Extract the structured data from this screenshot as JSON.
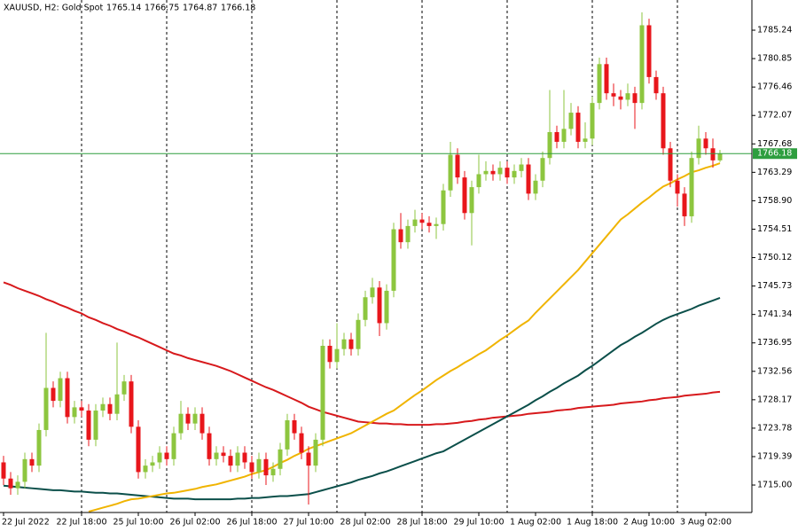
{
  "chart_data": {
    "type": "candlestick",
    "title": "XAUUSD, H2:  Gold Spot",
    "categories": [
      "22 Jul 2022",
      null,
      null,
      null,
      null,
      null,
      null,
      null,
      null,
      null,
      null,
      "22 Jul 18:00",
      null,
      null,
      null,
      null,
      null,
      null,
      null,
      "25 Jul 10:00",
      null,
      null,
      null,
      null,
      null,
      null,
      null,
      "26 Jul 02:00",
      null,
      null,
      null,
      null,
      null,
      null,
      null,
      "26 Jul 18:00",
      null,
      null,
      null,
      null,
      null,
      null,
      null,
      "27 Jul 10:00",
      null,
      null,
      null,
      null,
      null,
      null,
      null,
      "28 Jul 02:00",
      null,
      null,
      null,
      null,
      null,
      null,
      null,
      "28 Jul 18:00",
      null,
      null,
      null,
      null,
      null,
      null,
      null,
      "29 Jul 10:00",
      null,
      null,
      null,
      null,
      null,
      null,
      null,
      "1 Aug 02:00",
      null,
      null,
      null,
      null,
      null,
      null,
      null,
      "1 Aug 18:00",
      null,
      null,
      null,
      null,
      null,
      null,
      null,
      "2 Aug 10:00",
      null,
      null,
      null,
      null,
      null,
      null,
      null,
      "3 Aug 02:00",
      null,
      null
    ],
    "open": [
      1718.5,
      1716.0,
      1714.5,
      1715.5,
      1719.0,
      1718.0,
      1723.5,
      1730.0,
      1728.0,
      1731.5,
      1725.5,
      1727.0,
      1726.5,
      1722.0,
      1726.5,
      1727.5,
      1726.0,
      1729.0,
      1731.0,
      1724.0,
      1717.0,
      1718.0,
      1718.5,
      1720.0,
      1719.0,
      1723.0,
      1726.0,
      1724.5,
      1726.0,
      1723.0,
      1719.0,
      1720.0,
      1719.5,
      1718.0,
      1720.0,
      1718.5,
      1717.0,
      1719.0,
      1716.5,
      1717.5,
      1720.5,
      1725.0,
      1723.0,
      1720.0,
      1718.0,
      1722.0,
      1736.5,
      1734.0,
      1736.0,
      1737.5,
      1736.0,
      1740.5,
      1744.0,
      1745.5,
      1740.0,
      1745.0,
      1754.5,
      1752.5,
      1755.0,
      1756.0,
      1755.5,
      1755.0,
      1755.3,
      1760.5,
      1766.0,
      1762.5,
      1757.0,
      1761.0,
      1763.0,
      1763.5,
      1763.0,
      1764.0,
      1762.5,
      1763.5,
      1764.5,
      1760.0,
      1762.0,
      1765.5,
      1769.5,
      1768.0,
      1770.0,
      1772.5,
      1768.0,
      1768.5,
      1774.0,
      1780.0,
      1775.5,
      1775.0,
      1774.5,
      1775.5,
      1774.0,
      1786.0,
      1778.0,
      1775.5,
      1767.0,
      1762.0,
      1760.0,
      1756.5,
      1765.5,
      1768.5,
      1767.0,
      1765.14
    ],
    "high": [
      1719.5,
      1717,
      1716.5,
      1720,
      1720,
      1724.5,
      1738.5,
      1731,
      1732.5,
      1732.5,
      1728,
      1728,
      1727.5,
      1727.5,
      1728.5,
      1728.5,
      1737,
      1732,
      1732,
      1725,
      1719,
      1719.5,
      1721,
      1721,
      1724,
      1728,
      1727,
      1727,
      1727,
      1724,
      1721,
      1721,
      1720.5,
      1721,
      1721,
      1719.5,
      1720,
      1720,
      1718.5,
      1721.5,
      1726,
      1726,
      1724,
      1721,
      1723,
      1737.5,
      1737.5,
      1740,
      1738.5,
      1738.5,
      1741.5,
      1745,
      1747,
      1746.5,
      1746,
      1755.5,
      1757,
      1756,
      1757.5,
      1757,
      1756.5,
      1756.3,
      1761.5,
      1768,
      1767,
      1763.5,
      1762,
      1766,
      1765,
      1764.5,
      1765,
      1765,
      1764.5,
      1765.5,
      1765.5,
      1763,
      1766.5,
      1776,
      1770.5,
      1776,
      1774,
      1773.5,
      1771,
      1775,
      1781,
      1781,
      1777,
      1776,
      1777,
      1776.5,
      1788,
      1787,
      1779,
      1776.5,
      1768,
      1763,
      1761,
      1766.5,
      1770.5,
      1769.5,
      1768.5,
      1766.75
    ],
    "low": [
      1715,
      1713.5,
      1713.5,
      1714.5,
      1717,
      1717,
      1722.5,
      1727,
      1727,
      1724.5,
      1724.5,
      1725.5,
      1721,
      1721,
      1725.5,
      1725,
      1725,
      1728,
      1723,
      1716,
      1716,
      1717,
      1717.5,
      1718,
      1718,
      1722,
      1723.5,
      1723.5,
      1722,
      1718,
      1718,
      1718.5,
      1717,
      1717,
      1717.5,
      1716,
      1716,
      1715,
      1715.5,
      1716.5,
      1719.5,
      1722,
      1719,
      1712,
      1717,
      1721,
      1733,
      1733,
      1735,
      1735,
      1735,
      1739.5,
      1743,
      1738,
      1739,
      1744,
      1751.5,
      1751.5,
      1754,
      1754.5,
      1754,
      1753,
      1754.3,
      1759.5,
      1761.5,
      1756,
      1752,
      1760,
      1762,
      1762,
      1762,
      1761.5,
      1761.5,
      1762.5,
      1759,
      1759,
      1761,
      1764.5,
      1767,
      1767,
      1769,
      1767,
      1767,
      1767.5,
      1773,
      1774.5,
      1773.5,
      1773,
      1773.5,
      1770,
      1773,
      1777,
      1774.5,
      1766,
      1761,
      1758,
      1755,
      1755.5,
      1764.5,
      1766,
      1764,
      1764.87
    ],
    "close": [
      1716.0,
      1714.5,
      1715.5,
      1719.0,
      1718.0,
      1723.5,
      1730.0,
      1728.0,
      1731.5,
      1725.5,
      1727.0,
      1726.5,
      1722.0,
      1726.5,
      1727.5,
      1726.0,
      1729.0,
      1731.0,
      1724.0,
      1717.0,
      1718.0,
      1718.5,
      1720.0,
      1719.0,
      1723.0,
      1726.0,
      1724.5,
      1726.0,
      1723.0,
      1719.0,
      1720.0,
      1719.5,
      1718.0,
      1720.0,
      1718.5,
      1717.0,
      1719.0,
      1716.5,
      1717.5,
      1720.5,
      1725.0,
      1723.0,
      1720.0,
      1718.0,
      1722.0,
      1736.5,
      1734.0,
      1736.0,
      1737.5,
      1736.0,
      1740.5,
      1744.0,
      1745.5,
      1740.0,
      1745.0,
      1754.5,
      1752.5,
      1755.0,
      1756.0,
      1755.5,
      1755.0,
      1755.3,
      1760.5,
      1766.0,
      1762.5,
      1757.0,
      1761.0,
      1763.0,
      1763.5,
      1763.0,
      1764.0,
      1762.5,
      1763.5,
      1764.5,
      1760.0,
      1762.0,
      1765.5,
      1769.5,
      1768.0,
      1770.0,
      1772.5,
      1768.0,
      1768.5,
      1774.0,
      1780.0,
      1775.5,
      1775.0,
      1774.5,
      1775.5,
      1774.0,
      1786.0,
      1778.0,
      1775.5,
      1767.0,
      1762.0,
      1760.0,
      1756.5,
      1765.5,
      1768.5,
      1767.0,
      1765.14,
      1766.18
    ],
    "up_color": "#8dc63f",
    "down_color": "#e8161b",
    "price_line_color": "#2e9e3f",
    "overlays": [
      {
        "color": "#d7191c",
        "values": [
          1746.3,
          1745.9,
          1745.4,
          1745.0,
          1744.6,
          1744.2,
          1743.7,
          1743.3,
          1742.8,
          1742.4,
          1741.9,
          1741.5,
          1740.9,
          1740.5,
          1740.0,
          1739.6,
          1739.1,
          1738.7,
          1738.2,
          1737.8,
          1737.3,
          1736.8,
          1736.3,
          1735.8,
          1735.3,
          1735.0,
          1734.6,
          1734.3,
          1734.0,
          1733.7,
          1733.4,
          1733.0,
          1732.6,
          1732.1,
          1731.6,
          1731.1,
          1730.6,
          1730.1,
          1729.7,
          1729.2,
          1728.7,
          1728.2,
          1727.7,
          1727.1,
          1726.7,
          1726.3,
          1726.0,
          1725.7,
          1725.4,
          1725.1,
          1724.8,
          1724.7,
          1724.6,
          1724.5,
          1724.5,
          1724.4,
          1724.4,
          1724.3,
          1724.3,
          1724.3,
          1724.3,
          1724.4,
          1724.4,
          1724.5,
          1724.6,
          1724.8,
          1724.9,
          1725.1,
          1725.2,
          1725.4,
          1725.5,
          1725.6,
          1725.7,
          1725.8,
          1726.0,
          1726.1,
          1726.2,
          1726.3,
          1726.5,
          1726.6,
          1726.7,
          1726.9,
          1727.0,
          1727.1,
          1727.2,
          1727.3,
          1727.4,
          1727.6,
          1727.7,
          1727.8,
          1727.9,
          1728.1,
          1728.2,
          1728.4,
          1728.5,
          1728.6,
          1728.8,
          1728.9,
          1729.0,
          1729.1,
          1729.3,
          1729.4
        ]
      },
      {
        "color": "#0b4f4a",
        "values": [
          1714.9,
          1714.8,
          1714.7,
          1714.6,
          1714.5,
          1714.4,
          1714.3,
          1714.2,
          1714.2,
          1714.1,
          1714.0,
          1714.0,
          1713.9,
          1713.8,
          1713.8,
          1713.7,
          1713.7,
          1713.6,
          1713.5,
          1713.4,
          1713.3,
          1713.2,
          1713.1,
          1713.0,
          1712.9,
          1712.9,
          1712.9,
          1712.8,
          1712.8,
          1712.8,
          1712.8,
          1712.8,
          1712.8,
          1712.9,
          1712.9,
          1713.0,
          1713.0,
          1713.1,
          1713.2,
          1713.3,
          1713.3,
          1713.4,
          1713.5,
          1713.6,
          1713.9,
          1714.2,
          1714.5,
          1714.8,
          1715.1,
          1715.4,
          1715.8,
          1716.1,
          1716.4,
          1716.8,
          1717.1,
          1717.5,
          1717.9,
          1718.3,
          1718.7,
          1719.1,
          1719.5,
          1719.9,
          1720.2,
          1720.8,
          1721.4,
          1722.0,
          1722.6,
          1723.2,
          1723.8,
          1724.4,
          1725.0,
          1725.6,
          1726.2,
          1726.8,
          1727.4,
          1728.1,
          1728.7,
          1729.4,
          1730.0,
          1730.7,
          1731.3,
          1731.9,
          1732.7,
          1733.4,
          1734.2,
          1735.0,
          1735.8,
          1736.6,
          1737.2,
          1737.9,
          1738.5,
          1739.2,
          1739.9,
          1740.5,
          1741.0,
          1741.4,
          1741.8,
          1742.2,
          1742.7,
          1743.1,
          1743.5,
          1743.9
        ]
      },
      {
        "color": "#f0b400",
        "values": [
          null,
          null,
          null,
          null,
          null,
          null,
          null,
          null,
          null,
          null,
          null,
          null,
          1710.9,
          1711.2,
          1711.5,
          1711.8,
          1712.1,
          1712.5,
          1712.8,
          1712.9,
          1713.1,
          1713.3,
          1713.5,
          1713.7,
          1713.8,
          1714.0,
          1714.2,
          1714.4,
          1714.7,
          1714.9,
          1715.1,
          1715.4,
          1715.7,
          1716.0,
          1716.3,
          1716.7,
          1717.0,
          1717.3,
          1717.8,
          1718.4,
          1718.9,
          1719.5,
          1720.0,
          1720.6,
          1721.0,
          1721.4,
          1721.8,
          1722.2,
          1722.6,
          1723.0,
          1723.6,
          1724.2,
          1724.8,
          1725.4,
          1726.0,
          1726.5,
          1727.3,
          1728.1,
          1728.9,
          1729.6,
          1730.4,
          1731.2,
          1731.9,
          1732.6,
          1733.2,
          1733.9,
          1734.5,
          1735.2,
          1735.8,
          1736.6,
          1737.4,
          1738.1,
          1738.9,
          1739.7,
          1740.4,
          1741.6,
          1742.7,
          1743.8,
          1744.9,
          1746.0,
          1747.1,
          1748.2,
          1749.5,
          1750.8,
          1752.1,
          1753.4,
          1754.7,
          1756.0,
          1756.8,
          1757.7,
          1758.6,
          1759.4,
          1760.3,
          1761.1,
          1761.6,
          1762.2,
          1762.7,
          1763.3,
          1763.6,
          1764.0,
          1764.3,
          1764.7
        ]
      }
    ],
    "ylim": [
      1710.76,
      1789.9
    ],
    "yticks": [
      {
        "value": 1715,
        "label": "1715.00"
      },
      1719.39,
      1723.78,
      1728.17,
      1732.56,
      1736.95,
      1741.34,
      1745.73,
      1750.12,
      1754.51,
      {
        "value": 1758.9,
        "label": "1758.90"
      },
      1763.29,
      1767.68,
      1772.07,
      1776.46,
      1780.85,
      1785.24
    ],
    "grid": false
  }
}
